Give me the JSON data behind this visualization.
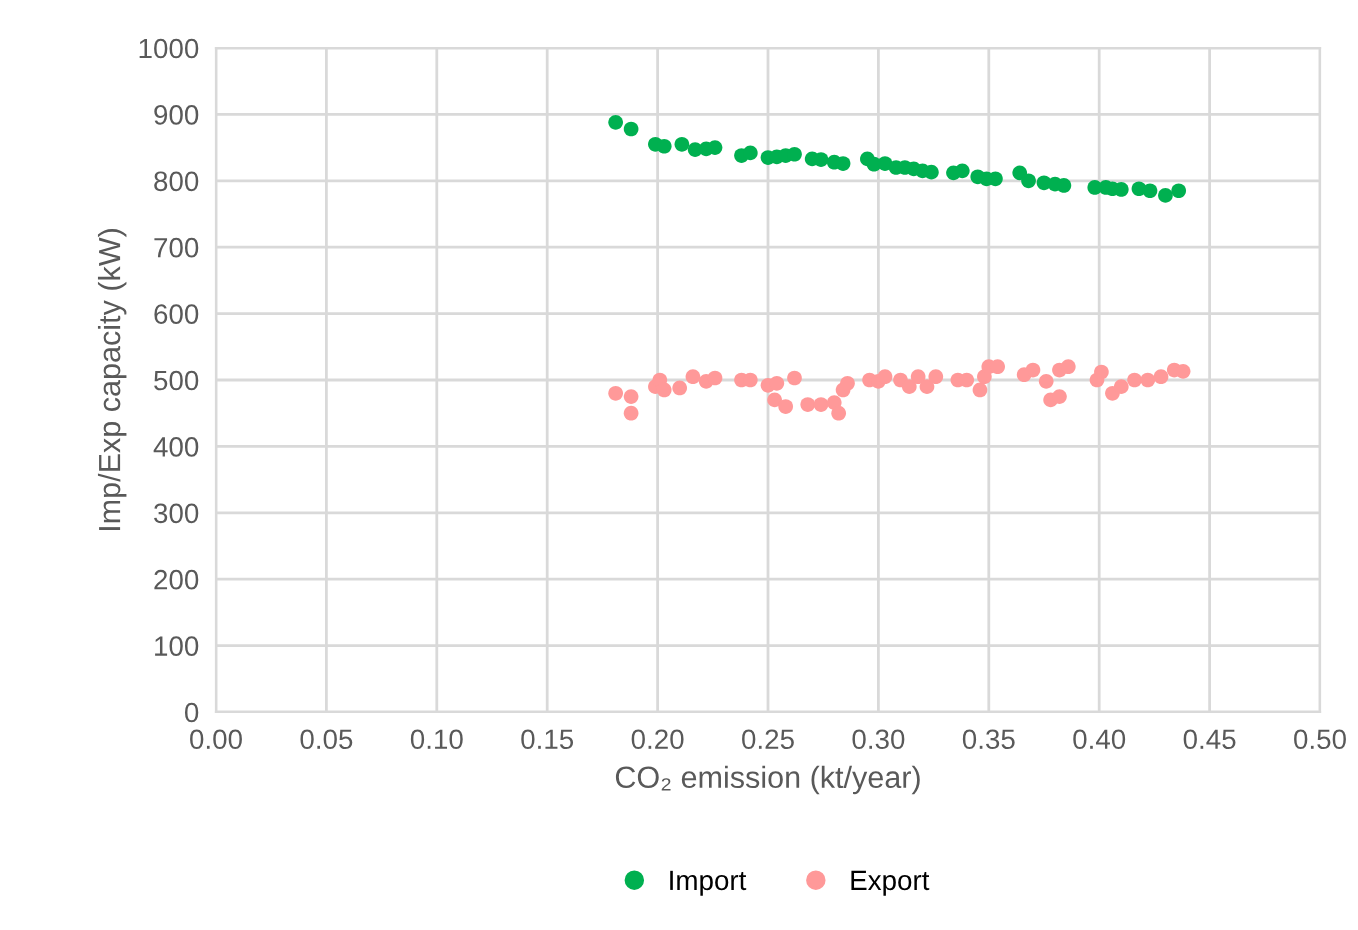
{
  "chart_data": {
    "type": "scatter",
    "xlabel": "CO₂ emission (kt/year)",
    "ylabel": "Imp/Exp capacity (kW)",
    "xlim": [
      0,
      0.5
    ],
    "xticks": [
      {
        "value": 0,
        "label": "0.00"
      },
      {
        "value": 0.05,
        "label": "0.05"
      },
      {
        "value": 0.1,
        "label": "0.10"
      },
      {
        "value": 0.15,
        "label": "0.15"
      },
      {
        "value": 0.2,
        "label": "0.20"
      },
      {
        "value": 0.25,
        "label": "0.25"
      },
      {
        "value": 0.3,
        "label": "0.30"
      },
      {
        "value": 0.35,
        "label": "0.35"
      },
      {
        "value": 0.4,
        "label": "0.40"
      },
      {
        "value": 0.45,
        "label": "0.45"
      },
      {
        "value": 0.5,
        "label": "0.50"
      }
    ],
    "ylim": [
      0,
      1000
    ],
    "yticks": [
      0,
      100,
      200,
      300,
      400,
      500,
      600,
      700,
      800,
      900,
      1000
    ],
    "grid": true,
    "legend": "bottom",
    "marker": "circle",
    "series": [
      {
        "name": "Import",
        "color": "#00b050",
        "x": [
          0.181,
          0.188,
          0.199,
          0.203,
          0.211,
          0.217,
          0.222,
          0.226,
          0.238,
          0.242,
          0.25,
          0.254,
          0.258,
          0.262,
          0.27,
          0.274,
          0.28,
          0.284,
          0.295,
          0.298,
          0.303,
          0.308,
          0.312,
          0.316,
          0.32,
          0.324,
          0.334,
          0.338,
          0.345,
          0.349,
          0.353,
          0.364,
          0.368,
          0.375,
          0.38,
          0.384,
          0.398,
          0.403,
          0.406,
          0.41,
          0.418,
          0.423,
          0.43,
          0.436
        ],
        "values": [
          888,
          878,
          855,
          852,
          855,
          847,
          848,
          850,
          838,
          842,
          835,
          836,
          838,
          840,
          833,
          832,
          828,
          826,
          833,
          825,
          826,
          820,
          820,
          818,
          815,
          813,
          812,
          815,
          806,
          803,
          803,
          812,
          800,
          797,
          795,
          793,
          790,
          790,
          788,
          787,
          788,
          785,
          778,
          785
        ]
      },
      {
        "name": "Export",
        "color": "#ff9999",
        "x": [
          0.181,
          0.188,
          0.188,
          0.199,
          0.201,
          0.203,
          0.21,
          0.216,
          0.222,
          0.226,
          0.238,
          0.242,
          0.25,
          0.254,
          0.253,
          0.258,
          0.262,
          0.268,
          0.274,
          0.28,
          0.282,
          0.284,
          0.286,
          0.296,
          0.3,
          0.303,
          0.31,
          0.314,
          0.318,
          0.322,
          0.326,
          0.336,
          0.34,
          0.346,
          0.348,
          0.35,
          0.354,
          0.366,
          0.37,
          0.376,
          0.378,
          0.382,
          0.382,
          0.386,
          0.399,
          0.401,
          0.406,
          0.41,
          0.416,
          0.422,
          0.428,
          0.434,
          0.438
        ],
        "values": [
          480,
          475,
          450,
          490,
          500,
          485,
          488,
          505,
          498,
          503,
          500,
          500,
          492,
          495,
          470,
          460,
          503,
          463,
          463,
          466,
          450,
          485,
          495,
          500,
          498,
          505,
          500,
          490,
          505,
          490,
          505,
          500,
          500,
          485,
          505,
          520,
          520,
          508,
          515,
          498,
          470,
          475,
          515,
          520,
          500,
          512,
          480,
          490,
          500,
          500,
          505,
          515,
          513
        ]
      }
    ]
  }
}
